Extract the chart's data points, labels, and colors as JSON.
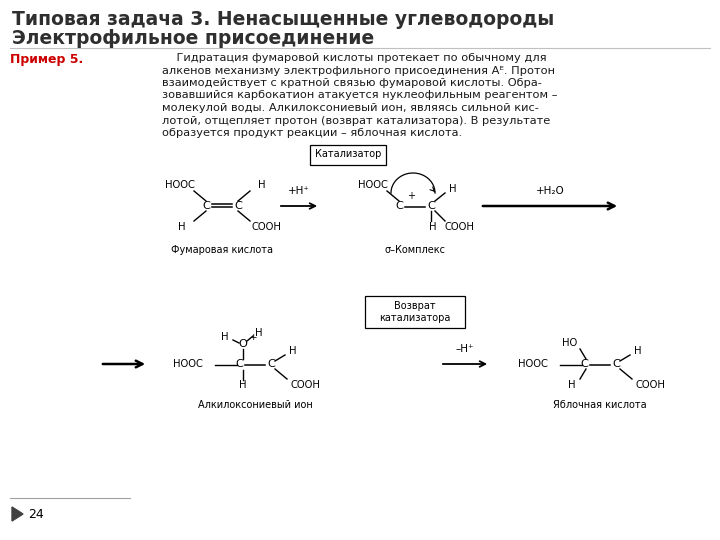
{
  "title_line1": "Типовая задача 3. Ненасыщенные углеводороды",
  "title_line2": "Электрофильное присоединение",
  "primer_label": "Пример 5.",
  "body_lines": [
    "    Гидратация фумаровой кислоты протекает по обычному для",
    "алкенов механизму электрофильного присоединения Aᴱ. Протон",
    "взаимодействует с кратной связью фумаровой кислоты. Обра-",
    "зовавшийся карбокатион атакуется нуклеофильным реагентом –",
    "молекулой воды. Алкилоксониевый ион, являясь сильной кис-",
    "лотой, отщепляет протон (возврат катализатора). В результате",
    "образуется продукт реакции – яблочная кислота."
  ],
  "background_color": "#ffffff",
  "title_color": "#2f2f2f",
  "primer_color": "#cc0000",
  "body_color": "#1a1a1a",
  "page_number": "24",
  "title_fontsize": 13.5,
  "body_fontsize": 8.2,
  "primer_fontsize": 9
}
